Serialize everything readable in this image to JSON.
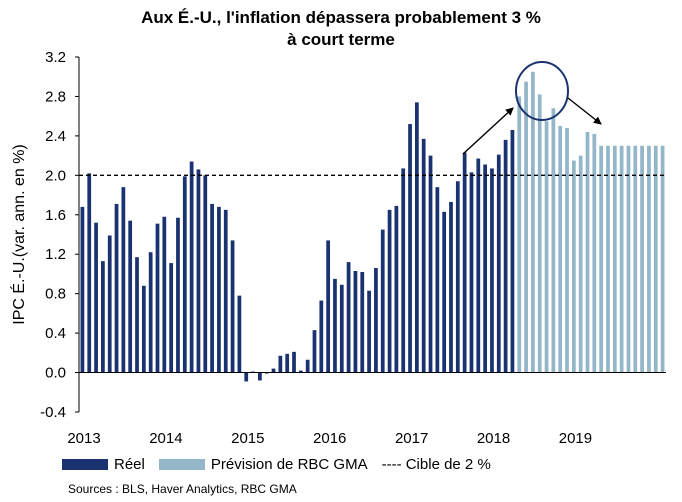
{
  "chart_data": {
    "type": "bar",
    "title_line1": "Aux É.-U., l'inflation dépassera probablement 3 %",
    "title_line2": "à court terme",
    "ylabel": "IPC É.-U.(var. ann. en %)",
    "ylim": [
      -0.4,
      3.2
    ],
    "yticks": [
      "3.2",
      "2.8",
      "2.4",
      "2.0",
      "1.6",
      "1.2",
      "0.8",
      "0.4",
      "0.0",
      "-0.4"
    ],
    "ytick_values": [
      3.2,
      2.8,
      2.4,
      2.0,
      1.6,
      1.2,
      0.8,
      0.4,
      0.0,
      -0.4
    ],
    "xtick_labels": [
      "2013",
      "2014",
      "2015",
      "2016",
      "2017",
      "2018",
      "2019"
    ],
    "target_line": 2.0,
    "series": [
      {
        "name": "Réel",
        "color": "#1a3370",
        "values": [
          1.68,
          2.02,
          1.52,
          1.13,
          1.39,
          1.71,
          1.88,
          1.54,
          1.17,
          0.88,
          1.22,
          1.51,
          1.58,
          1.11,
          1.57,
          1.99,
          2.14,
          2.06,
          2.0,
          1.71,
          1.68,
          1.65,
          1.34,
          0.78,
          -0.09,
          0.01,
          -0.08,
          -0.01,
          0.04,
          0.17,
          0.19,
          0.21,
          0.02,
          0.13,
          0.43,
          0.73,
          1.34,
          0.95,
          0.89,
          1.12,
          1.03,
          1.02,
          0.83,
          1.06,
          1.45,
          1.65,
          1.69,
          2.07,
          2.52,
          2.74,
          2.37,
          2.2,
          1.88,
          1.63,
          1.73,
          1.94,
          2.23,
          2.03,
          2.17,
          2.11,
          2.07,
          2.21,
          2.36,
          2.46
        ]
      },
      {
        "name": "Prévision de RBC GMA",
        "color": "#93b6c9",
        "values": [
          2.8,
          2.95,
          3.05,
          2.82,
          2.55,
          2.68,
          2.5,
          2.48,
          2.15,
          2.2,
          2.44,
          2.42,
          2.3,
          2.3,
          2.3,
          2.3,
          2.3,
          2.3,
          2.3,
          2.3,
          2.3,
          2.3
        ]
      }
    ],
    "legend": {
      "actual": "Réel",
      "forecast": "Prévision de RBC GMA",
      "target": "---- Cible de 2 %"
    },
    "sources": "Sources : BLS, Haver Analytics, RBC GMA"
  }
}
